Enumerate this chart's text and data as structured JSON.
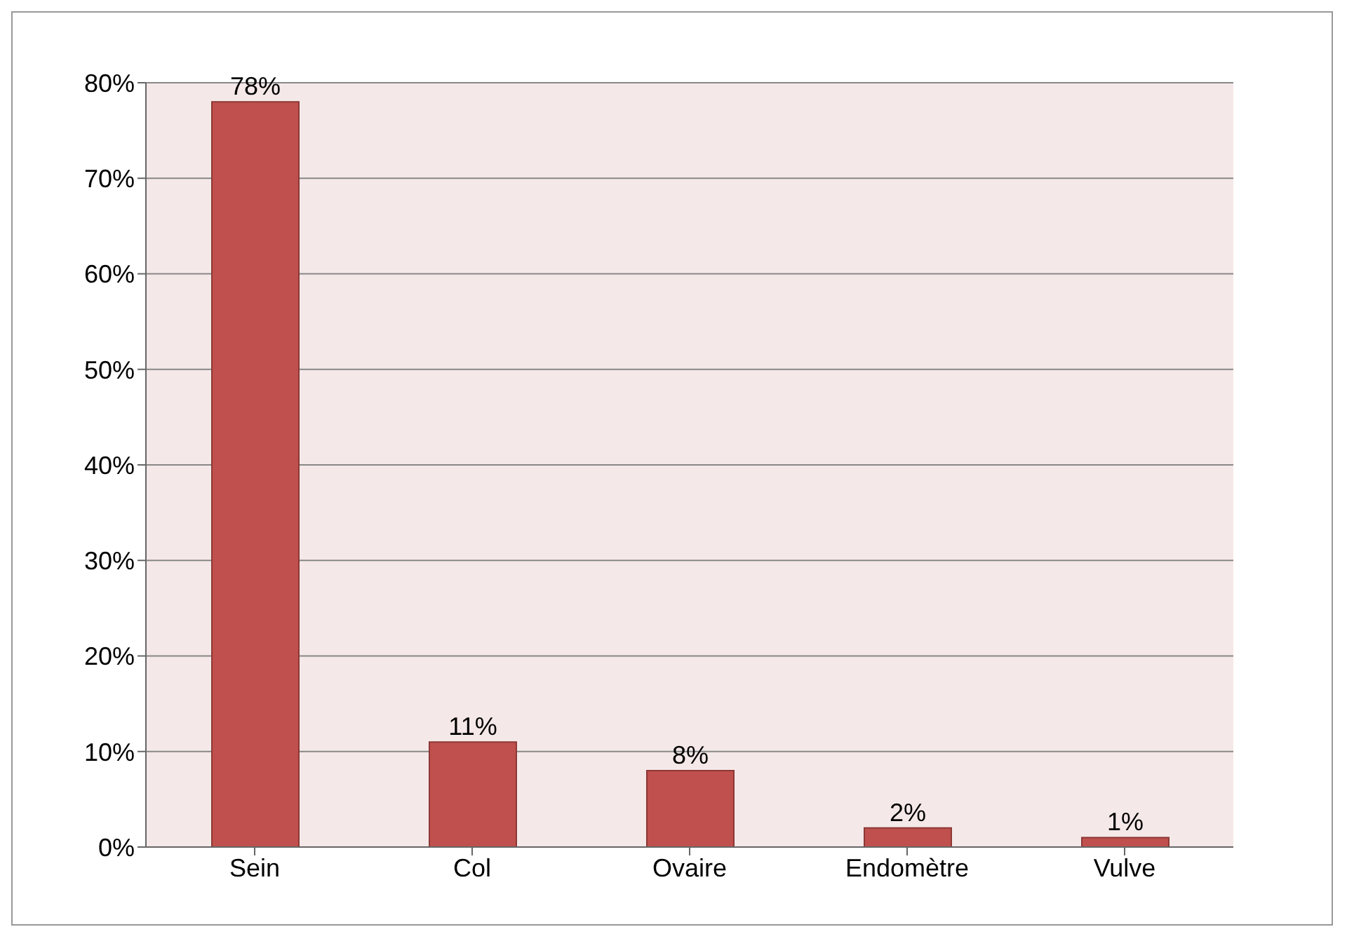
{
  "chart_data": {
    "type": "bar",
    "categories": [
      "Sein",
      "Col",
      "Ovaire",
      "Endomètre",
      "Vulve"
    ],
    "values": [
      78,
      11,
      8,
      2,
      1
    ],
    "value_labels": [
      "78%",
      "11%",
      "8%",
      "2%",
      "1%"
    ],
    "color": "#c0504d",
    "ylim": [
      0,
      80
    ],
    "yticks": [
      {
        "value": 0,
        "label": "0%"
      },
      {
        "value": 10,
        "label": "10%"
      },
      {
        "value": 20,
        "label": "20%"
      },
      {
        "value": 30,
        "label": "30%"
      },
      {
        "value": 40,
        "label": "40%"
      },
      {
        "value": 50,
        "label": "50%"
      },
      {
        "value": 60,
        "label": "60%"
      },
      {
        "value": 70,
        "label": "70%"
      },
      {
        "value": 80,
        "label": "80%"
      }
    ],
    "grid": "y"
  }
}
